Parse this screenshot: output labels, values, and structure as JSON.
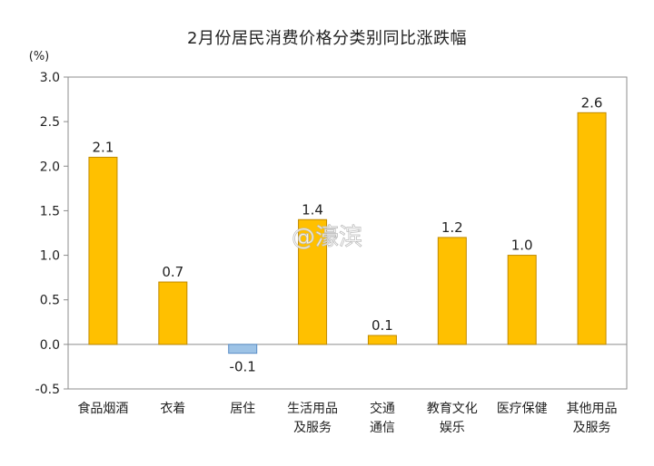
{
  "chart_data": {
    "type": "bar",
    "title": "2月份居民消费价格分类别同比涨跌幅",
    "y_unit": "(%)",
    "categories": [
      [
        "食品烟酒"
      ],
      [
        "衣着"
      ],
      [
        "居住"
      ],
      [
        "生活用品",
        "及服务"
      ],
      [
        "交通",
        "通信"
      ],
      [
        "教育文化",
        "娱乐"
      ],
      [
        "医疗保健"
      ],
      [
        "其他用品",
        "及服务"
      ]
    ],
    "values": [
      2.1,
      0.7,
      -0.1,
      1.4,
      0.1,
      1.2,
      1.0,
      2.6
    ],
    "value_labels": [
      "2.1",
      "0.7",
      "-0.1",
      "1.4",
      "0.1",
      "1.2",
      "1.0",
      "2.6"
    ],
    "ylim": [
      -0.5,
      3.0
    ],
    "y_ticks": [
      3.0,
      2.5,
      2.0,
      1.5,
      1.0,
      0.5,
      0.0,
      -0.5
    ],
    "y_tick_labels": [
      "3.0",
      "2.5",
      "2.0",
      "1.5",
      "1.0",
      "0.5",
      "0.0",
      "-0.5"
    ],
    "grid": false,
    "colors": {
      "positive": "#ffc000",
      "positive_border": "#c08a00",
      "negative": "#9dc3e6",
      "negative_border": "#5b8ec7",
      "axis": "#8c8c8c",
      "text": "#222222"
    }
  },
  "watermark": "@濠滨"
}
